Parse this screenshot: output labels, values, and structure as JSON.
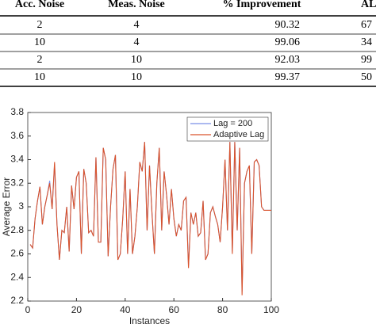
{
  "table": {
    "headers": [
      "Acc. Noise",
      "Meas. Noise",
      "% Improvement",
      "AL"
    ],
    "rows": [
      [
        "2",
        "4",
        "90.32",
        "67"
      ],
      [
        "10",
        "4",
        "99.06",
        "34"
      ],
      [
        "2",
        "10",
        "92.03",
        "99"
      ],
      [
        "10",
        "10",
        "99.37",
        "50"
      ]
    ]
  },
  "chart_data": {
    "type": "line",
    "xlabel": "Instances",
    "ylabel": "Average Error",
    "xlim": [
      0,
      100
    ],
    "xticks": [
      0,
      20,
      40,
      60,
      80,
      100
    ],
    "ylim": [
      2.2,
      3.8
    ],
    "yticks": [
      2.2,
      2.4,
      2.6,
      2.8,
      3,
      3.2,
      3.4,
      3.6,
      3.8
    ],
    "legend": "upper right",
    "x": [
      1,
      2,
      3,
      4,
      5,
      6,
      7,
      8,
      9,
      10,
      11,
      12,
      13,
      14,
      15,
      16,
      17,
      18,
      19,
      20,
      21,
      22,
      23,
      24,
      25,
      26,
      27,
      28,
      29,
      30,
      31,
      32,
      33,
      34,
      35,
      36,
      37,
      38,
      39,
      40,
      41,
      42,
      43,
      44,
      45,
      46,
      47,
      48,
      49,
      50,
      51,
      52,
      53,
      54,
      55,
      56,
      57,
      58,
      59,
      60,
      61,
      62,
      63,
      64,
      65,
      66,
      67,
      68,
      69,
      70,
      71,
      72,
      73,
      74,
      75,
      76,
      77,
      78,
      79,
      80,
      81,
      82,
      83,
      84,
      85,
      86,
      87,
      88,
      89,
      90,
      91,
      92,
      93,
      94,
      95,
      96,
      97,
      98,
      99,
      100
    ],
    "series": [
      {
        "name": "Lag = 200",
        "color": "#7b8fe8",
        "values": [
          2.68,
          2.65,
          2.9,
          3.05,
          3.17,
          2.85,
          3.0,
          3.1,
          3.22,
          2.98,
          3.36,
          2.85,
          2.55,
          2.8,
          2.78,
          3.0,
          2.62,
          3.18,
          2.98,
          3.25,
          3.3,
          2.6,
          3.32,
          3.2,
          2.78,
          2.8,
          2.75,
          3.42,
          2.7,
          2.7,
          3.5,
          3.4,
          2.58,
          3.0,
          3.32,
          3.44,
          2.55,
          2.6,
          2.9,
          3.3,
          2.6,
          3.15,
          2.6,
          2.75,
          3.0,
          3.38,
          3.3,
          3.55,
          2.8,
          3.35,
          2.95,
          2.6,
          3.2,
          3.5,
          2.8,
          3.3,
          3.1,
          2.85,
          3.15,
          2.9,
          2.75,
          2.85,
          2.8,
          3.05,
          3.08,
          2.5,
          2.95,
          2.85,
          2.95,
          2.75,
          2.78,
          3.05,
          2.55,
          2.6,
          2.95,
          3.0,
          2.92,
          2.85,
          2.7,
          3.0,
          3.4,
          2.8,
          3.55,
          2.62,
          3.55,
          2.8,
          3.5,
          2.28,
          3.2,
          3.3,
          3.35,
          2.6,
          3.38,
          3.4,
          3.35,
          3.0,
          2.97,
          2.97,
          2.97,
          2.97
        ]
      },
      {
        "name": "Adaptive Lag",
        "color": "#d9532c",
        "values": [
          2.68,
          2.65,
          2.9,
          3.05,
          3.17,
          2.85,
          3.0,
          3.1,
          3.2,
          2.98,
          3.38,
          2.85,
          2.55,
          2.8,
          2.78,
          3.0,
          2.62,
          3.18,
          2.98,
          3.25,
          3.3,
          2.6,
          3.32,
          3.2,
          2.78,
          2.8,
          2.75,
          3.42,
          2.7,
          2.7,
          3.5,
          3.4,
          2.58,
          3.0,
          3.32,
          3.44,
          2.55,
          2.6,
          2.9,
          3.3,
          2.6,
          3.15,
          2.6,
          2.75,
          3.0,
          3.38,
          3.3,
          3.55,
          2.8,
          3.35,
          2.95,
          2.6,
          3.2,
          3.5,
          2.8,
          3.3,
          3.1,
          2.85,
          3.15,
          2.9,
          2.75,
          2.85,
          2.8,
          3.05,
          3.08,
          2.48,
          2.95,
          2.85,
          2.95,
          2.75,
          2.78,
          3.05,
          2.55,
          2.6,
          2.95,
          3.0,
          2.92,
          2.85,
          2.7,
          3.0,
          3.4,
          2.8,
          3.55,
          2.6,
          3.55,
          2.8,
          3.5,
          2.25,
          3.2,
          3.3,
          3.35,
          2.6,
          3.38,
          3.4,
          3.35,
          3.0,
          2.97,
          2.97,
          2.97,
          2.97
        ]
      }
    ]
  }
}
